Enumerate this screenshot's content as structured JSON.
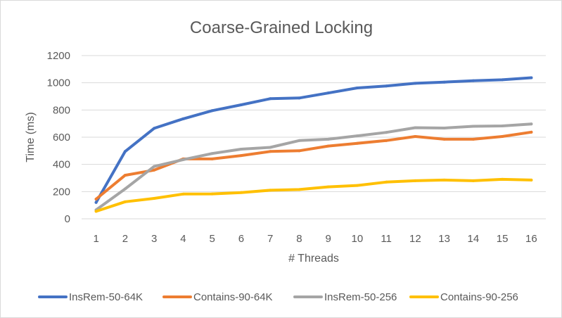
{
  "chart_data": {
    "type": "line",
    "title": "Coarse-Grained Locking",
    "xlabel": "# Threads",
    "ylabel": "Time (ms)",
    "x": [
      1,
      2,
      3,
      4,
      5,
      6,
      7,
      8,
      9,
      10,
      11,
      12,
      13,
      14,
      15,
      16
    ],
    "ylim": [
      0,
      1200
    ],
    "yticks": [
      0,
      200,
      400,
      600,
      800,
      1000,
      1200
    ],
    "grid": true,
    "legend": "bottom",
    "series": [
      {
        "name": "InsRem-50-64K",
        "color": "#4472C4",
        "values": [
          120,
          495,
          665,
          735,
          795,
          838,
          883,
          888,
          925,
          962,
          976,
          996,
          1005,
          1015,
          1022,
          1037
        ]
      },
      {
        "name": "Contains-90-64K",
        "color": "#ED7D31",
        "values": [
          145,
          320,
          358,
          440,
          440,
          465,
          495,
          500,
          535,
          555,
          575,
          605,
          585,
          585,
          605,
          637
        ]
      },
      {
        "name": "InsRem-50-256",
        "color": "#A5A5A5",
        "values": [
          65,
          220,
          385,
          435,
          480,
          512,
          525,
          575,
          585,
          610,
          635,
          670,
          667,
          680,
          683,
          697
        ]
      },
      {
        "name": "Contains-90-256",
        "color": "#FFC000",
        "values": [
          55,
          125,
          150,
          182,
          183,
          193,
          210,
          215,
          235,
          245,
          270,
          280,
          285,
          280,
          290,
          285
        ]
      }
    ]
  }
}
